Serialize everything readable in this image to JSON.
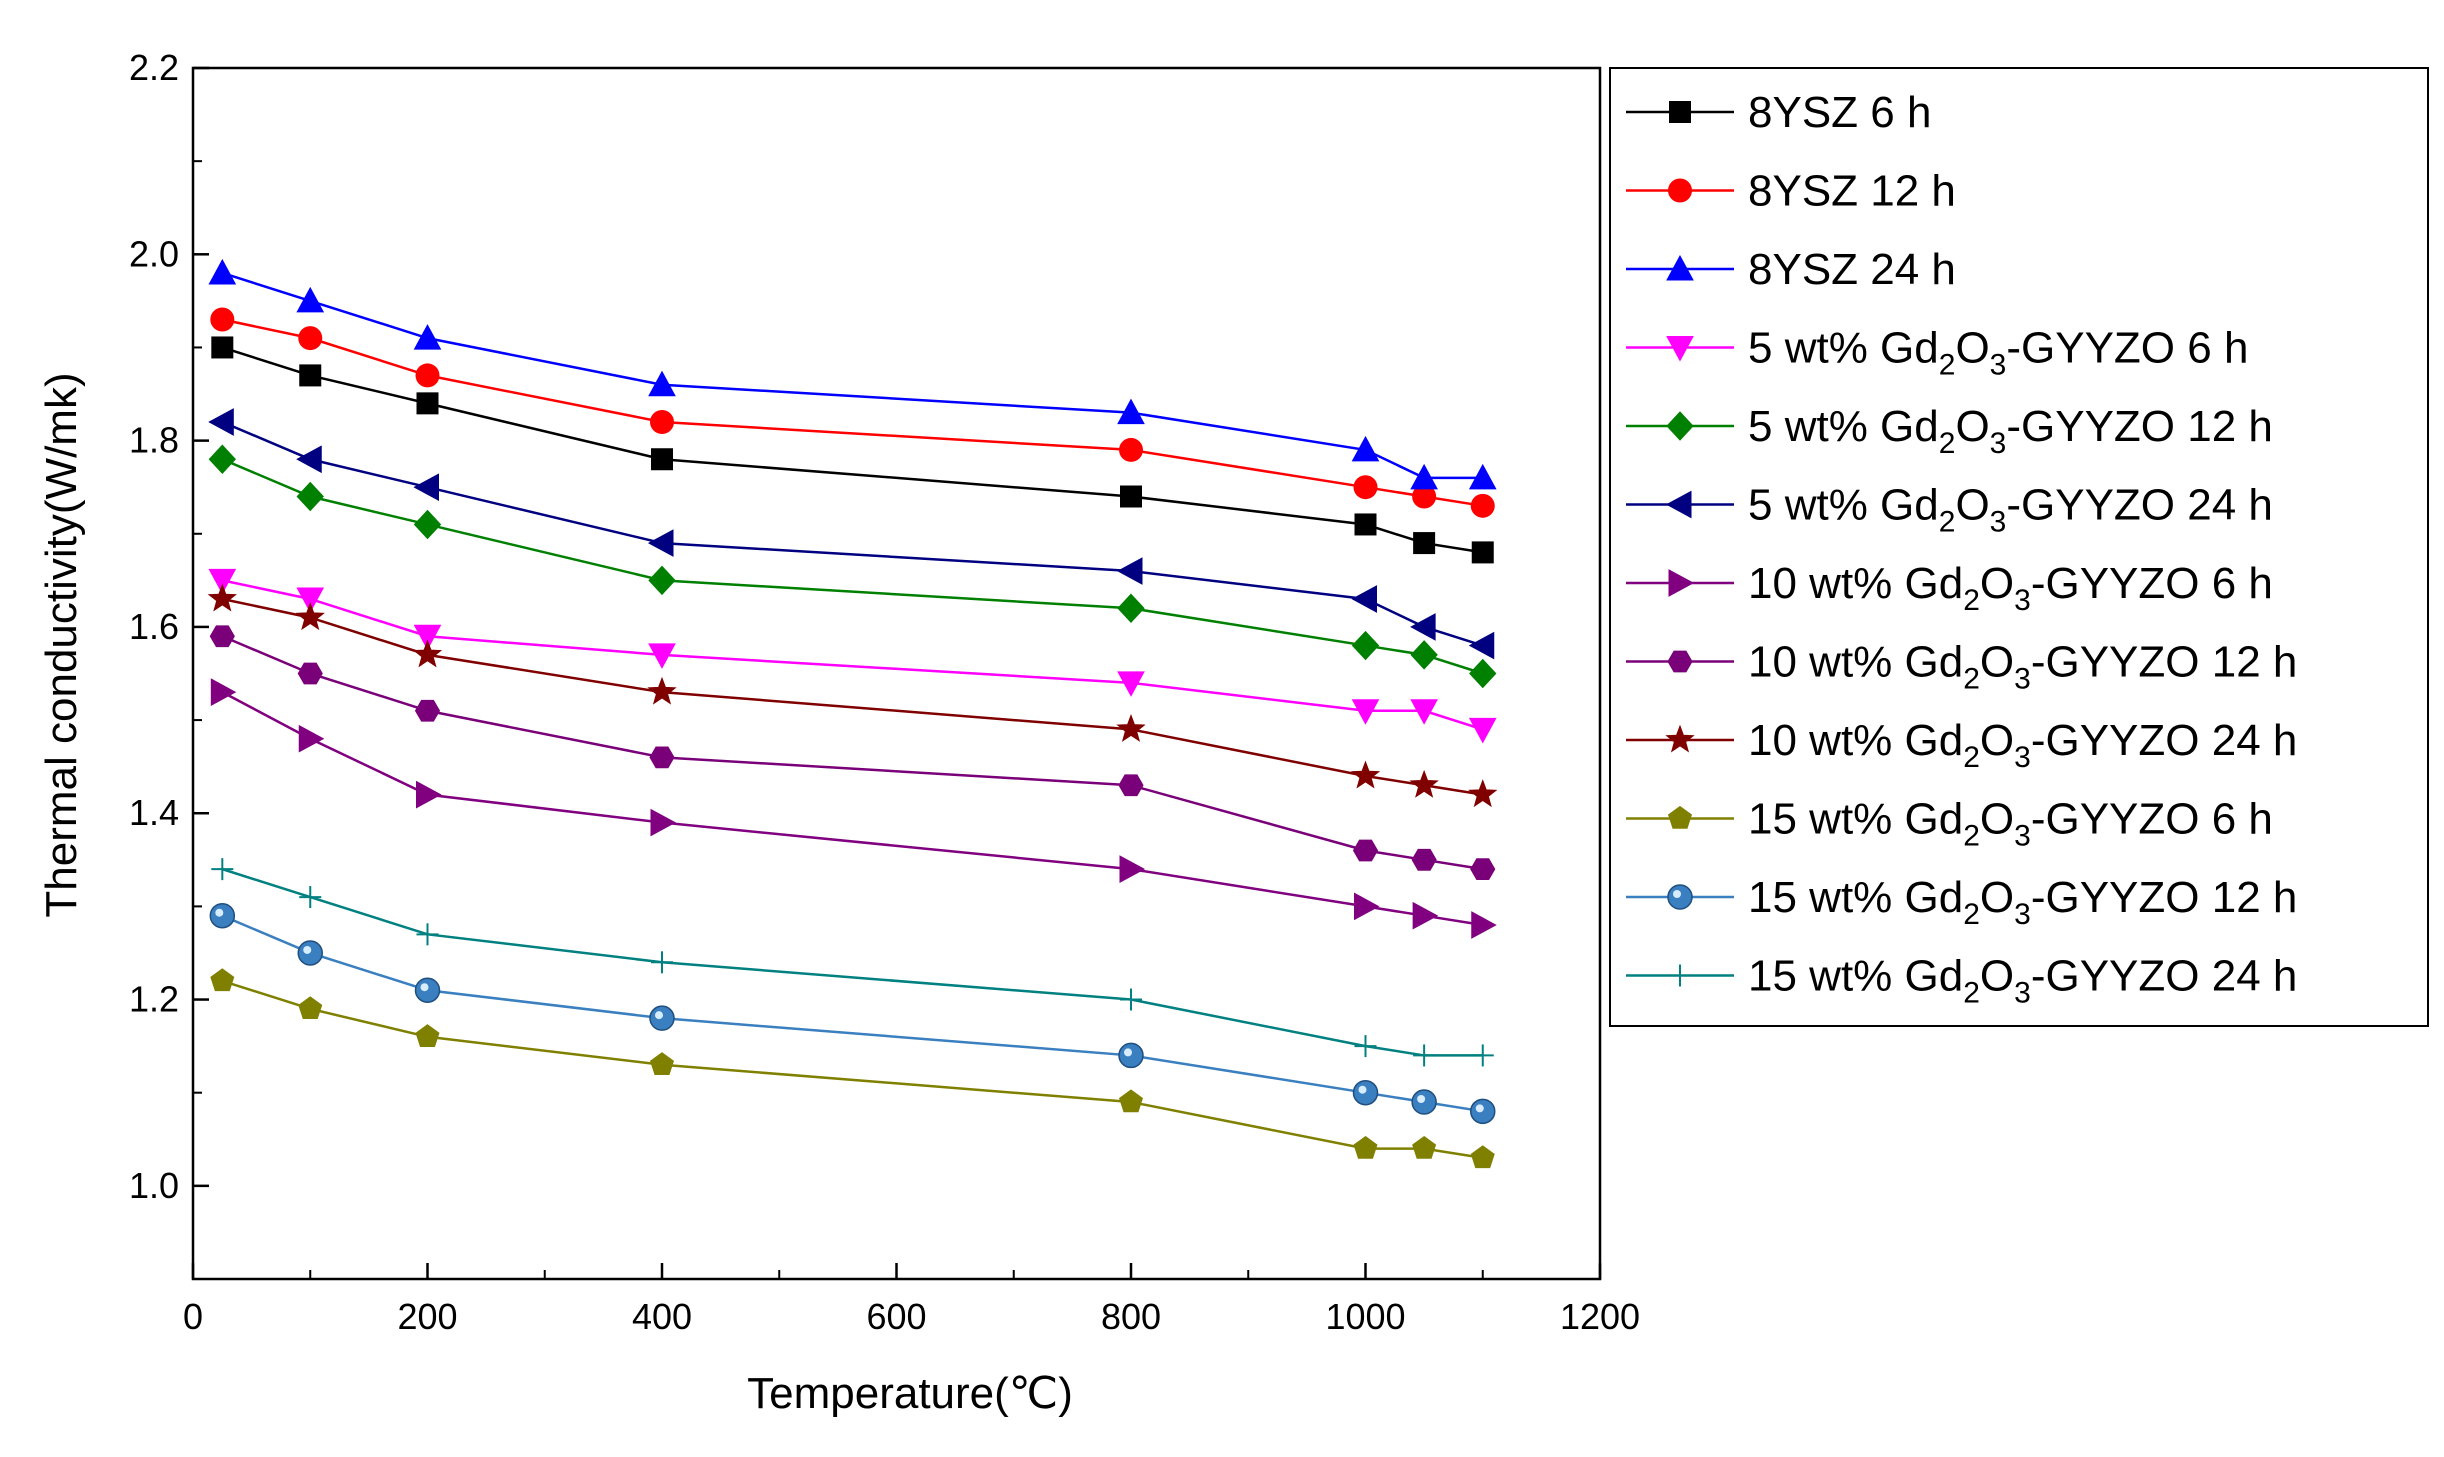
{
  "chart_data": {
    "type": "line",
    "title": "",
    "xlabel": "Temperature(℃)",
    "ylabel": "Thermal conductivity(W/mk)",
    "xlim": [
      0,
      1200
    ],
    "ylim": [
      0.9,
      2.2
    ],
    "x_ticks": [
      "0",
      "200",
      "400",
      "600",
      "800",
      "1000",
      "1200"
    ],
    "y_ticks": [
      "1.0",
      "1.2",
      "1.4",
      "1.6",
      "1.8",
      "2.0",
      "2.2"
    ],
    "grid": false,
    "legend_position": "right, outside plot",
    "x": [
      25,
      100,
      200,
      400,
      800,
      1000,
      1050,
      1100
    ],
    "series": [
      {
        "name": "8YSZ 6 h",
        "label_main": "8YSZ 6 h",
        "label_rest": "",
        "color": "#000000",
        "marker": "square",
        "values": [
          1.9,
          1.87,
          1.84,
          1.78,
          1.74,
          1.71,
          1.69,
          1.68
        ]
      },
      {
        "name": "8YSZ 12 h",
        "label_main": "8YSZ 12 h",
        "label_rest": "",
        "color": "#ff0000",
        "marker": "circle",
        "values": [
          1.93,
          1.91,
          1.87,
          1.82,
          1.79,
          1.75,
          1.74,
          1.73
        ]
      },
      {
        "name": "8YSZ 24 h",
        "label_main": "8YSZ 24 h",
        "label_rest": "",
        "color": "#0000ff",
        "marker": "triangle-up",
        "values": [
          1.98,
          1.95,
          1.91,
          1.86,
          1.83,
          1.79,
          1.76,
          1.76
        ]
      },
      {
        "name": "5 wt% Gd2O3-GYYZO 6 h",
        "label_main": "5 wt% Gd",
        "label_rest": "-GYYZO 6 h",
        "color": "#ff00ff",
        "marker": "triangle-down",
        "values": [
          1.65,
          1.63,
          1.59,
          1.57,
          1.54,
          1.51,
          1.51,
          1.49
        ]
      },
      {
        "name": "5 wt% Gd2O3-GYYZO 12 h",
        "label_main": "5 wt% Gd",
        "label_rest": "-GYYZO 12 h",
        "color": "#008000",
        "marker": "diamond",
        "values": [
          1.78,
          1.74,
          1.71,
          1.65,
          1.62,
          1.58,
          1.57,
          1.55
        ]
      },
      {
        "name": "5 wt% Gd2O3-GYYZO 24 h",
        "label_main": "5 wt% Gd",
        "label_rest": "-GYYZO 24 h",
        "color": "#000080",
        "marker": "triangle-left",
        "values": [
          1.82,
          1.78,
          1.75,
          1.69,
          1.66,
          1.63,
          1.6,
          1.58
        ]
      },
      {
        "name": "10 wt% Gd2O3-GYYZO 6 h",
        "label_main": "10 wt% Gd",
        "label_rest": "-GYYZO 6 h",
        "color": "#800080",
        "marker": "triangle-right",
        "values": [
          1.53,
          1.48,
          1.42,
          1.39,
          1.34,
          1.3,
          1.29,
          1.28
        ]
      },
      {
        "name": "10 wt% Gd2O3-GYYZO 12 h",
        "label_main": "10 wt% Gd",
        "label_rest": "-GYYZO 12 h",
        "color": "#7a007a",
        "marker": "hexagon",
        "values": [
          1.59,
          1.55,
          1.51,
          1.46,
          1.43,
          1.36,
          1.35,
          1.34
        ]
      },
      {
        "name": "10 wt% Gd2O3-GYYZO 24 h",
        "label_main": "10 wt% Gd",
        "label_rest": "-GYYZO 24 h",
        "color": "#800000",
        "marker": "star",
        "values": [
          1.63,
          1.61,
          1.57,
          1.53,
          1.49,
          1.44,
          1.43,
          1.42
        ]
      },
      {
        "name": "15 wt% Gd2O3-GYYZO 6 h",
        "label_main": "15 wt% Gd",
        "label_rest": "-GYYZO 6 h",
        "color": "#808000",
        "marker": "pentagon",
        "values": [
          1.22,
          1.19,
          1.16,
          1.13,
          1.09,
          1.04,
          1.04,
          1.03
        ]
      },
      {
        "name": "15 wt% Gd2O3-GYYZO 12 h",
        "label_main": "15 wt% Gd",
        "label_rest": "-GYYZO 12 h",
        "color": "#3a7fc0",
        "marker": "sphere",
        "values": [
          1.29,
          1.25,
          1.21,
          1.18,
          1.14,
          1.1,
          1.09,
          1.08
        ]
      },
      {
        "name": "15 wt% Gd2O3-GYYZO 24 h",
        "label_main": "15 wt% Gd",
        "label_rest": "-GYYZO 24 h",
        "color": "#008080",
        "marker": "plus",
        "values": [
          1.34,
          1.31,
          1.27,
          1.24,
          1.2,
          1.15,
          1.14,
          1.14
        ]
      }
    ],
    "formula_sub": {
      "o_char": "O",
      "sub2": "2",
      "sub3": "3"
    }
  }
}
